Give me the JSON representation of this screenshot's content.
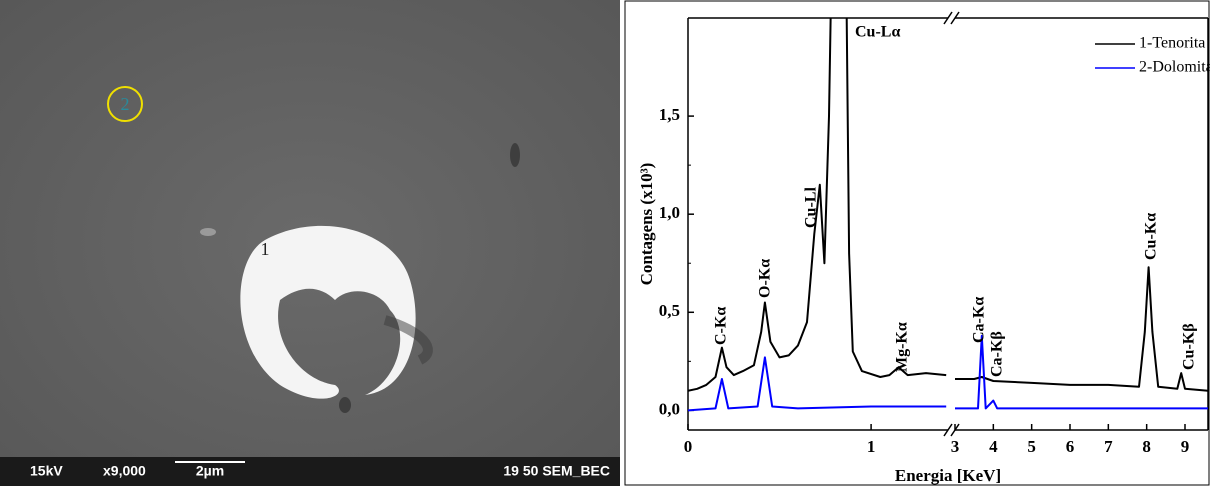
{
  "image": {
    "labels": [
      "1",
      "2"
    ],
    "footer": [
      "15kV",
      "x9,000",
      "2µm",
      "19 50 SEM_BEC"
    ]
  },
  "chart_data": {
    "type": "line",
    "ylabel": "Contagens (x10³)",
    "xlabel": "Energia [KeV]",
    "ylim": [
      -0.1,
      2.0
    ],
    "yticks": [
      {
        "value": 0,
        "label": "0,0"
      },
      {
        "value": 0.5,
        "label": "0,5"
      },
      {
        "value": 1.0,
        "label": "1,0"
      },
      {
        "value": 1.5,
        "label": "1,5"
      }
    ],
    "xlim": [
      0,
      1.42
    ],
    "xticks": [
      0,
      1
    ],
    "x2lim": [
      3,
      9.6
    ],
    "x2ticks": [
      3,
      4,
      5,
      6,
      7,
      8,
      9
    ],
    "legend": "top-right",
    "series": [
      {
        "name": "1-Tenorita",
        "color": "#000000",
        "x": [
          0,
          0.05,
          0.1,
          0.15,
          0.185,
          0.21,
          0.25,
          0.3,
          0.36,
          0.4,
          0.42,
          0.45,
          0.5,
          0.55,
          0.6,
          0.65,
          0.69,
          0.72,
          0.745,
          0.77,
          0.79,
          0.86,
          0.88,
          0.9,
          0.95,
          1.05,
          1.1,
          1.15,
          1.2,
          1.3,
          1.41,
          2,
          3,
          3.5,
          3.7,
          4,
          5,
          6,
          7,
          7.8,
          7.95,
          8.05,
          8.15,
          8.3,
          8.8,
          8.9,
          9,
          9.6
        ],
        "values": [
          0.1,
          0.11,
          0.13,
          0.17,
          0.32,
          0.22,
          0.18,
          0.2,
          0.23,
          0.4,
          0.55,
          0.35,
          0.27,
          0.28,
          0.33,
          0.45,
          0.9,
          1.15,
          0.75,
          1.5,
          2.6,
          2.6,
          0.8,
          0.3,
          0.2,
          0.17,
          0.18,
          0.22,
          0.18,
          0.19,
          0.18,
          null,
          0.16,
          0.16,
          0.17,
          0.15,
          0.14,
          0.13,
          0.13,
          0.12,
          0.4,
          0.73,
          0.4,
          0.12,
          0.11,
          0.19,
          0.11,
          0.1
        ]
      },
      {
        "name": "2-Dolomita",
        "color": "#0000ff",
        "x": [
          0,
          0.15,
          0.185,
          0.22,
          0.38,
          0.42,
          0.46,
          0.6,
          1.0,
          1.41,
          2,
          3,
          3.6,
          3.7,
          3.8,
          4.0,
          4.1,
          9.6
        ],
        "values": [
          0,
          0.01,
          0.16,
          0.01,
          0.02,
          0.27,
          0.02,
          0.01,
          0.02,
          0.02,
          null,
          0.01,
          0.01,
          0.38,
          0.01,
          0.05,
          0.01,
          0.01
        ]
      }
    ],
    "annotations": [
      "C-Kα",
      "O-Kα",
      "Cu-Ll",
      "Cu-Lα",
      "Mg-Kα",
      "Ca-Kα",
      "Ca-Kβ",
      "Cu-Kα",
      "Cu-Kβ"
    ]
  }
}
